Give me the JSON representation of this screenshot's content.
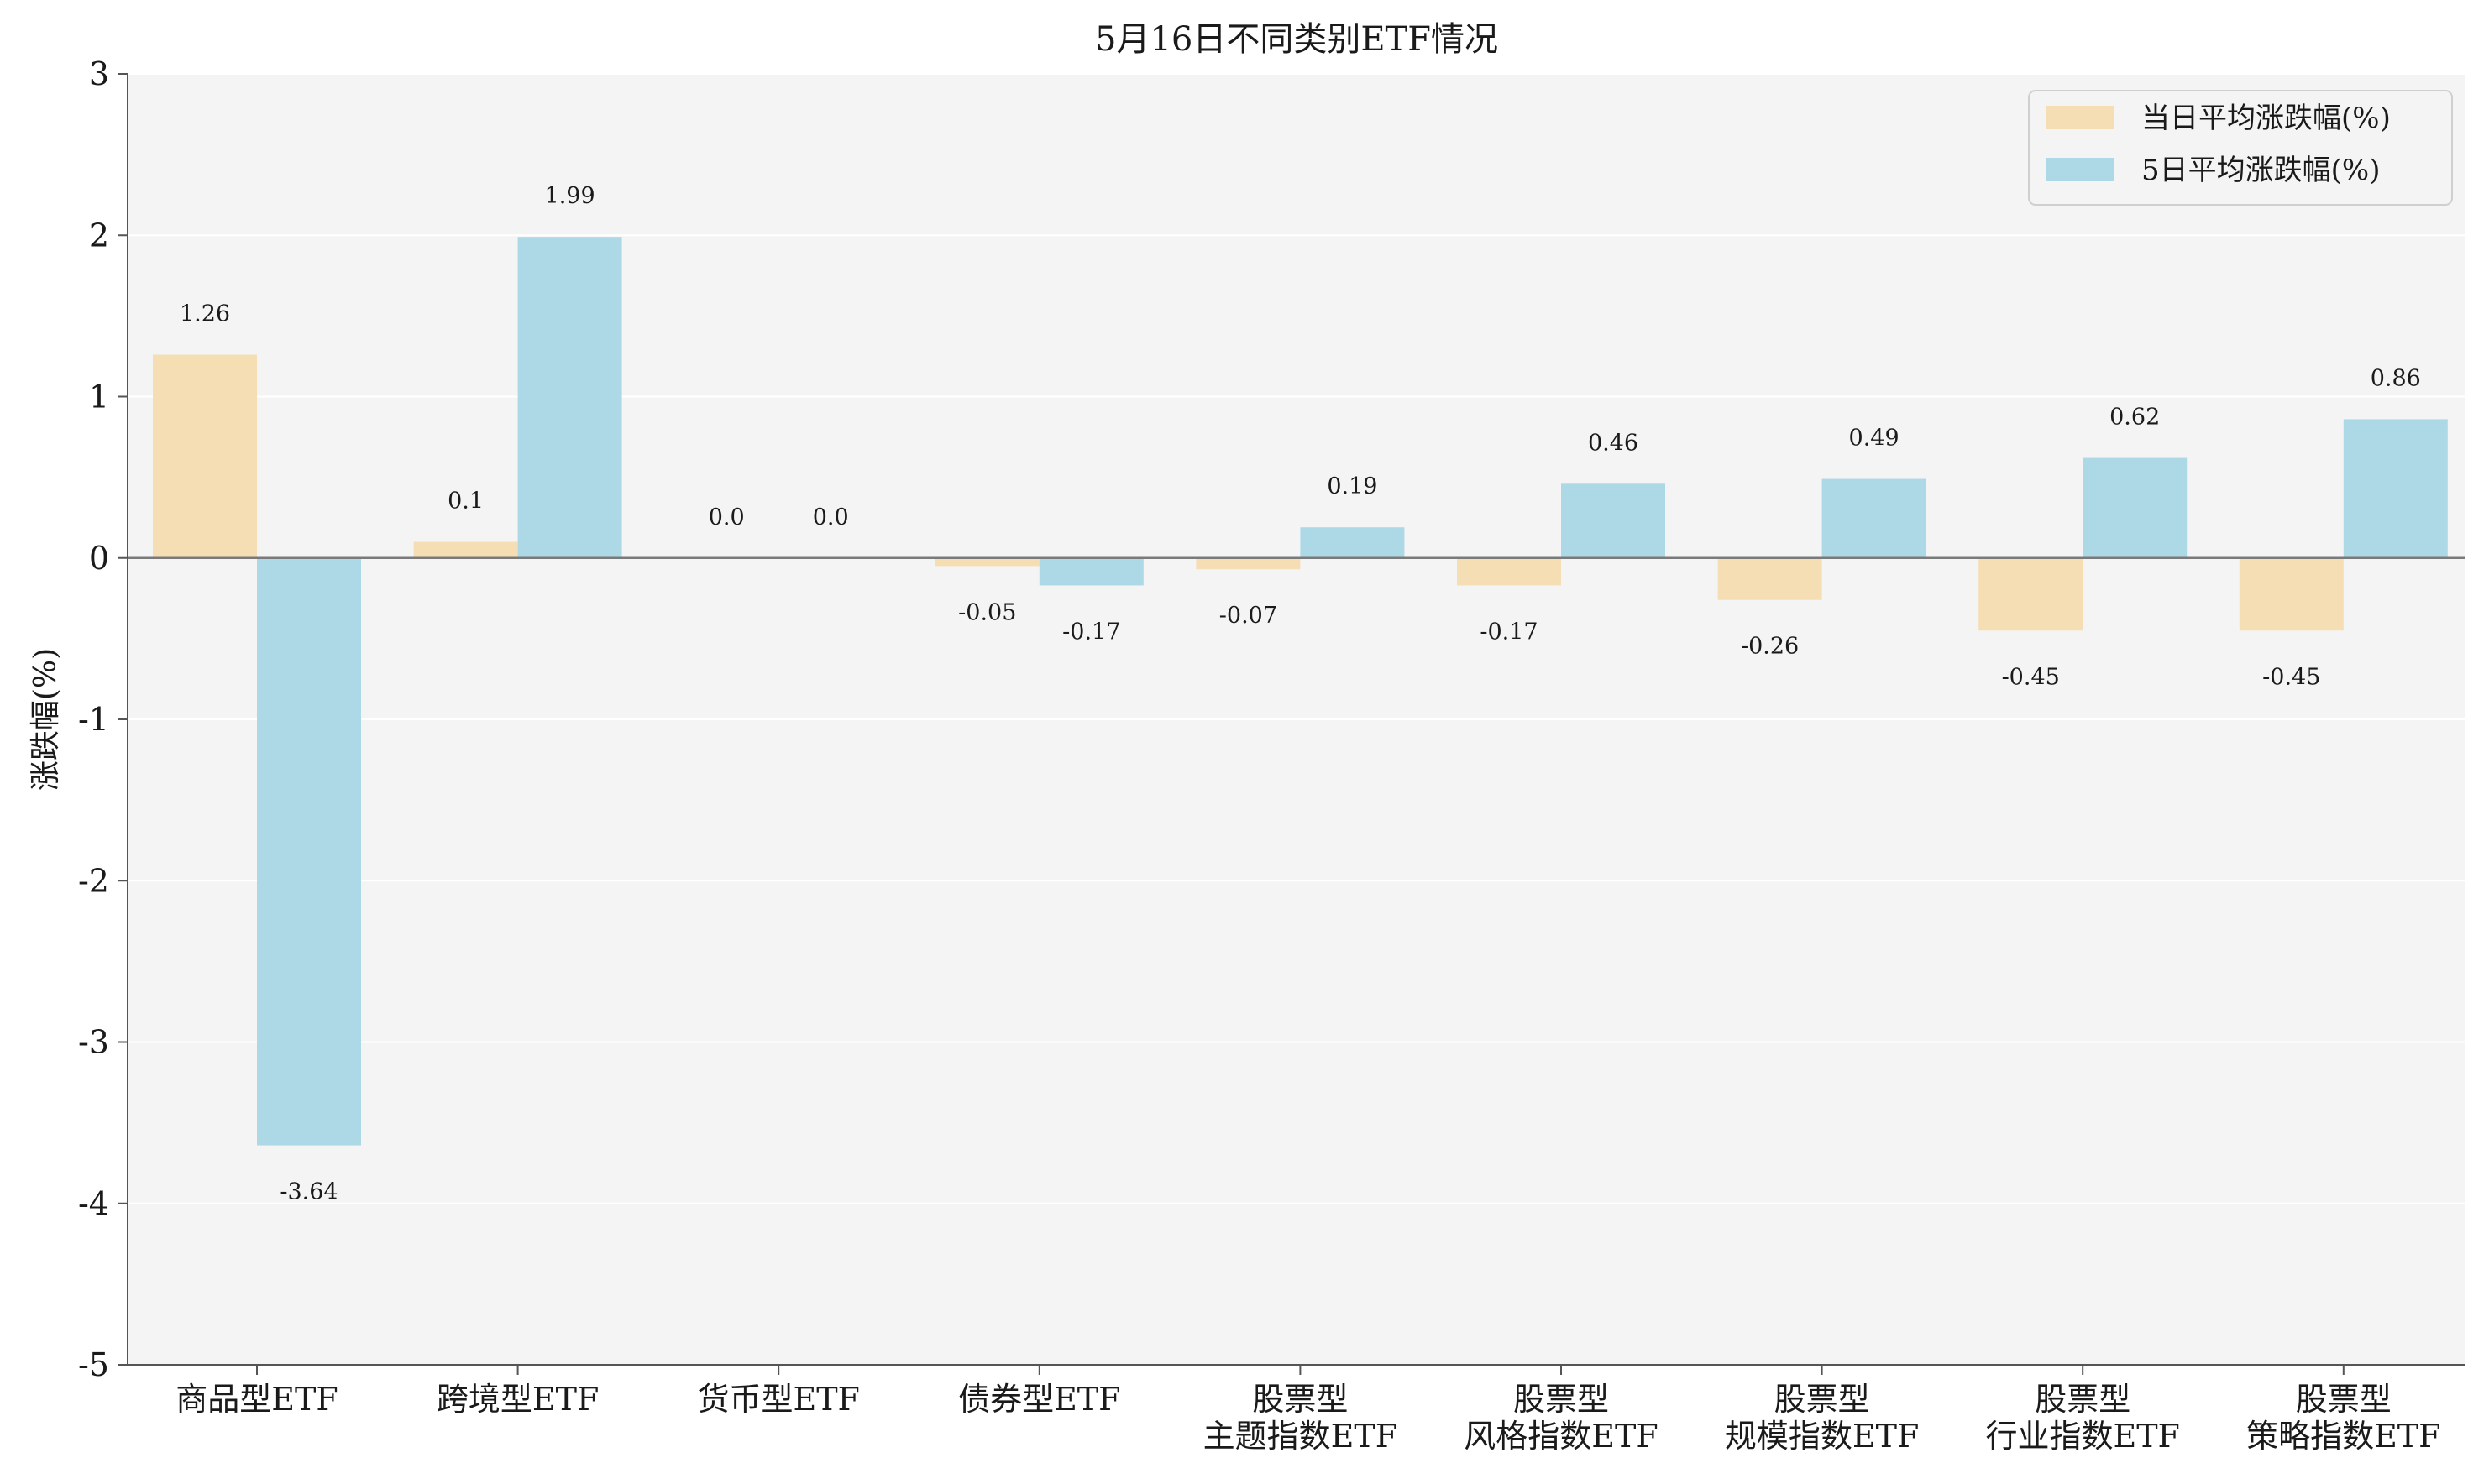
{
  "chart_data": {
    "type": "bar",
    "title": "5月16日不同类别ETF情况",
    "xlabel": "",
    "ylabel": "涨跌幅(%)",
    "ylim": [
      -5,
      3
    ],
    "yticks": [
      "-5",
      "-4",
      "-3",
      "-2",
      "-1",
      "0",
      "1",
      "2",
      "3"
    ],
    "grid": true,
    "legend_position": "top-right",
    "categories": [
      [
        "商品型ETF"
      ],
      [
        "跨境型ETF"
      ],
      [
        "货币型ETF"
      ],
      [
        "债券型ETF"
      ],
      [
        "股票型",
        "主题指数ETF"
      ],
      [
        "股票型",
        "风格指数ETF"
      ],
      [
        "股票型",
        "规模指数ETF"
      ],
      [
        "股票型",
        "行业指数ETF"
      ],
      [
        "股票型",
        "策略指数ETF"
      ]
    ],
    "series": [
      {
        "name": "当日平均涨跌幅(%)",
        "color": "#f5deb3",
        "values": [
          1.26,
          0.1,
          0.0,
          -0.05,
          -0.07,
          -0.17,
          -0.26,
          -0.45,
          -0.45
        ],
        "labels": [
          "1.26",
          "0.1",
          "0.0",
          "-0.05",
          "-0.07",
          "-0.17",
          "-0.26",
          "-0.45",
          "-0.45"
        ]
      },
      {
        "name": "5日平均涨跌幅(%)",
        "color": "#add8e6",
        "values": [
          -3.64,
          1.99,
          0.0,
          -0.17,
          0.19,
          0.46,
          0.49,
          0.62,
          0.86
        ],
        "labels": [
          "-3.64",
          "1.99",
          "0.0",
          "-0.17",
          "0.19",
          "0.46",
          "0.49",
          "0.62",
          "0.86"
        ]
      }
    ]
  }
}
